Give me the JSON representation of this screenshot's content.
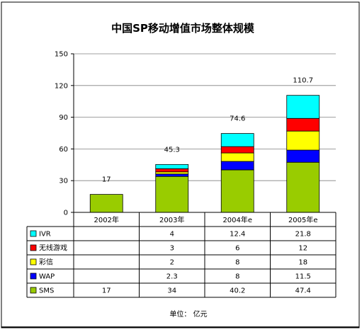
{
  "chart_data": {
    "type": "bar",
    "stacked": true,
    "title": "中国SP移动增值市场整体规模",
    "categories": [
      "2002年",
      "2003年",
      "2004年e",
      "2005年e"
    ],
    "ylim": [
      0,
      150
    ],
    "yticks": [
      0,
      30,
      60,
      90,
      120,
      150
    ],
    "grid": true,
    "totals": [
      "17",
      "45.3",
      "74.6",
      "110.7"
    ],
    "series": [
      {
        "name": "SMS",
        "color": "#99cc00",
        "values": [
          17,
          34,
          40.2,
          47.4
        ],
        "labels": [
          "17",
          "34",
          "40.2",
          "47.4"
        ]
      },
      {
        "name": "WAP",
        "color": "#0000ff",
        "values": [
          null,
          2.3,
          8,
          11.5
        ],
        "labels": [
          "",
          "2.3",
          "8",
          "11.5"
        ]
      },
      {
        "name": "彩信",
        "color": "#ffff00",
        "values": [
          null,
          2,
          8,
          18
        ],
        "labels": [
          "",
          "2",
          "8",
          "18"
        ]
      },
      {
        "name": "无线游戏",
        "color": "#ff0000",
        "values": [
          null,
          3,
          6,
          12
        ],
        "labels": [
          "",
          "3",
          "6",
          "12"
        ]
      },
      {
        "name": "IVR",
        "color": "#00ffff",
        "values": [
          null,
          4,
          12.4,
          21.8
        ],
        "labels": [
          "",
          "4",
          "12.4",
          "21.8"
        ]
      }
    ],
    "table_row_order": [
      "IVR",
      "无线游戏",
      "彩信",
      "WAP",
      "SMS"
    ]
  },
  "footer": {
    "unit_label": "单位：  亿元"
  }
}
